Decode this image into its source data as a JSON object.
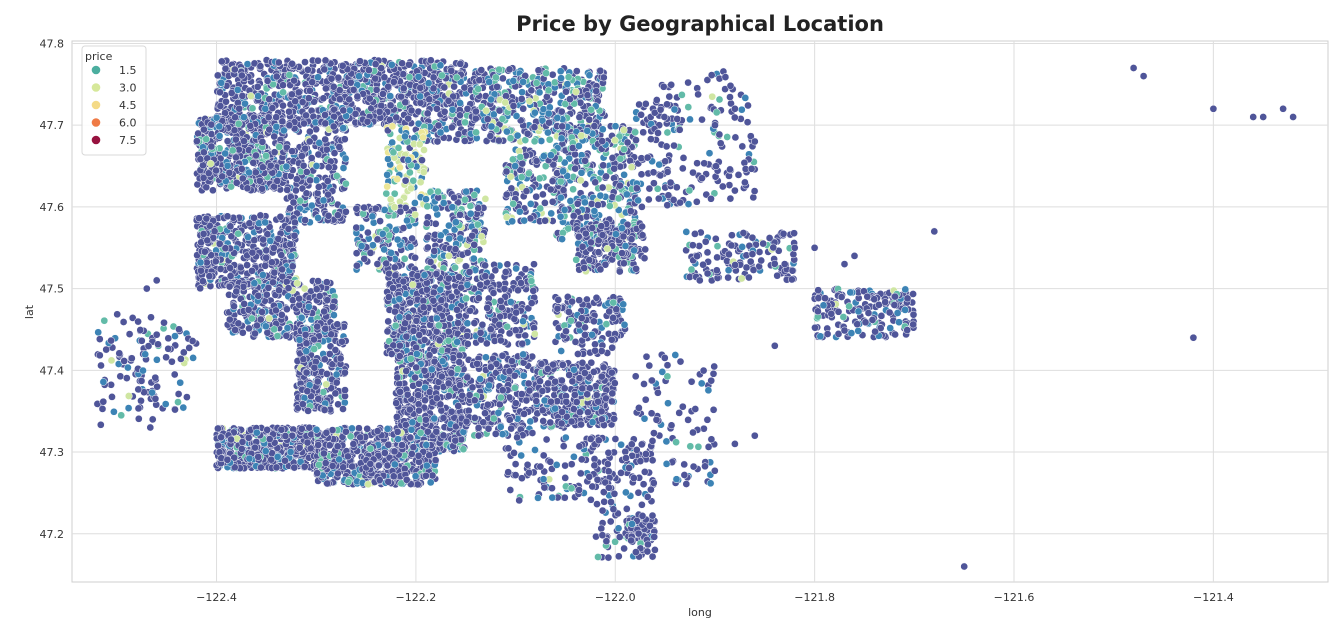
{
  "chart_data": {
    "type": "scatter",
    "title": "Price by Geographical Location",
    "xlabel": "long",
    "ylabel": "lat",
    "xlim": [
      -122.545,
      -121.285
    ],
    "ylim": [
      47.141,
      47.803
    ],
    "xticks": [
      -122.4,
      -122.2,
      -122.0,
      -121.8,
      -121.6,
      -121.4
    ],
    "xtick_labels": [
      "−122.4",
      "−122.2",
      "−122.0",
      "−121.8",
      "−121.6",
      "−121.4"
    ],
    "yticks": [
      47.2,
      47.3,
      47.4,
      47.5,
      47.6,
      47.7,
      47.8
    ],
    "ytick_labels": [
      "47.2",
      "47.3",
      "47.4",
      "47.5",
      "47.6",
      "47.7",
      "47.8"
    ],
    "grid": true,
    "hue": "price",
    "legend": {
      "title": "price",
      "placement": "top-left",
      "entries": [
        {
          "label": "1.5",
          "color": "#4bae9f"
        },
        {
          "label": "3.0",
          "color": "#d6e89a"
        },
        {
          "label": "4.5",
          "color": "#f4da86"
        },
        {
          "label": "6.0",
          "color": "#ef7a45"
        },
        {
          "label": "7.5",
          "color": "#97123f"
        }
      ]
    },
    "colors": {
      "base": "#4f5599",
      "mid": "#3c83b5",
      "teal": "#62bba8",
      "light": "#cfe6a2",
      "yellow": "#ece698",
      "edge": "#ffffff"
    },
    "clusters": [
      {
        "lon_range": [
          -122.4,
          -122.2
        ],
        "lat_range": [
          47.7,
          47.78
        ],
        "n": 700,
        "mix": "base"
      },
      {
        "lon_range": [
          -122.42,
          -122.33
        ],
        "lat_range": [
          47.62,
          47.71
        ],
        "n": 480,
        "mix": "base"
      },
      {
        "lon_range": [
          -122.33,
          -122.27
        ],
        "lat_range": [
          47.58,
          47.72
        ],
        "n": 260,
        "mix": "base"
      },
      {
        "lon_range": [
          -122.42,
          -122.32
        ],
        "lat_range": [
          47.5,
          47.59
        ],
        "n": 420,
        "mix": "base"
      },
      {
        "lon_range": [
          -122.39,
          -122.28
        ],
        "lat_range": [
          47.44,
          47.51
        ],
        "n": 320,
        "mix": "base"
      },
      {
        "lon_range": [
          -122.32,
          -122.27
        ],
        "lat_range": [
          47.35,
          47.46
        ],
        "n": 260,
        "mix": "base"
      },
      {
        "lon_range": [
          -122.4,
          -122.3
        ],
        "lat_range": [
          47.28,
          47.33
        ],
        "n": 420,
        "mix": "base"
      },
      {
        "lon_range": [
          -122.3,
          -122.22
        ],
        "lat_range": [
          47.26,
          47.33
        ],
        "n": 320,
        "mix": "base"
      },
      {
        "lon_range": [
          -122.2,
          -122.14
        ],
        "lat_range": [
          47.68,
          47.78
        ],
        "n": 260,
        "mix": "base"
      },
      {
        "lon_range": [
          -122.14,
          -122.07
        ],
        "lat_range": [
          47.68,
          47.77
        ],
        "n": 230,
        "mix": "mixed"
      },
      {
        "lon_range": [
          -122.07,
          -122.01
        ],
        "lat_range": [
          47.68,
          47.77
        ],
        "n": 170,
        "mix": "mixed"
      },
      {
        "lon_range": [
          -122.23,
          -122.19
        ],
        "lat_range": [
          47.6,
          47.7
        ],
        "n": 110,
        "mix": "light"
      },
      {
        "lon_range": [
          -122.26,
          -122.2
        ],
        "lat_range": [
          47.52,
          47.6
        ],
        "n": 150,
        "mix": "mixed"
      },
      {
        "lon_range": [
          -122.19,
          -122.13
        ],
        "lat_range": [
          47.52,
          47.62
        ],
        "n": 190,
        "mix": "mixed"
      },
      {
        "lon_range": [
          -122.06,
          -121.98
        ],
        "lat_range": [
          47.56,
          47.7
        ],
        "n": 360,
        "mix": "mixed"
      },
      {
        "lon_range": [
          -122.11,
          -122.05
        ],
        "lat_range": [
          47.58,
          47.67
        ],
        "n": 150,
        "mix": "mixed"
      },
      {
        "lon_range": [
          -122.04,
          -121.97
        ],
        "lat_range": [
          47.52,
          47.58
        ],
        "n": 180,
        "mix": "base"
      },
      {
        "lon_range": [
          -122.23,
          -122.15
        ],
        "lat_range": [
          47.42,
          47.52
        ],
        "n": 470,
        "mix": "base"
      },
      {
        "lon_range": [
          -122.22,
          -122.15
        ],
        "lat_range": [
          47.3,
          47.42
        ],
        "n": 480,
        "mix": "base"
      },
      {
        "lon_range": [
          -122.25,
          -122.18
        ],
        "lat_range": [
          47.26,
          47.31
        ],
        "n": 200,
        "mix": "base"
      },
      {
        "lon_range": [
          -122.15,
          -122.08
        ],
        "lat_range": [
          47.43,
          47.53
        ],
        "n": 200,
        "mix": "base"
      },
      {
        "lon_range": [
          -122.15,
          -122.08
        ],
        "lat_range": [
          47.32,
          47.42
        ],
        "n": 230,
        "mix": "base"
      },
      {
        "lon_range": [
          -122.08,
          -122.0
        ],
        "lat_range": [
          47.33,
          47.41
        ],
        "n": 310,
        "mix": "base"
      },
      {
        "lon_range": [
          -122.06,
          -121.99
        ],
        "lat_range": [
          47.42,
          47.49
        ],
        "n": 130,
        "mix": "base"
      },
      {
        "lon_range": [
          -122.03,
          -121.96
        ],
        "lat_range": [
          47.26,
          47.32
        ],
        "n": 70,
        "mix": "base"
      },
      {
        "lon_range": [
          -121.99,
          -121.96
        ],
        "lat_range": [
          47.19,
          47.22
        ],
        "n": 70,
        "mix": "base"
      },
      {
        "lon_range": [
          -122.11,
          -122.0
        ],
        "lat_range": [
          47.24,
          47.32
        ],
        "n": 90,
        "mix": "base"
      },
      {
        "lon_range": [
          -122.02,
          -121.96
        ],
        "lat_range": [
          47.17,
          47.26
        ],
        "n": 60,
        "mix": "base"
      },
      {
        "lon_range": [
          -121.98,
          -121.93
        ],
        "lat_range": [
          47.6,
          47.75
        ],
        "n": 110,
        "mix": "base"
      },
      {
        "lon_range": [
          -121.93,
          -121.86
        ],
        "lat_range": [
          47.6,
          47.77
        ],
        "n": 90,
        "mix": "base"
      },
      {
        "lon_range": [
          -121.93,
          -121.82
        ],
        "lat_range": [
          47.51,
          47.57
        ],
        "n": 130,
        "mix": "base"
      },
      {
        "lon_range": [
          -121.98,
          -121.9
        ],
        "lat_range": [
          47.3,
          47.42
        ],
        "n": 60,
        "mix": "base"
      },
      {
        "lon_range": [
          -121.95,
          -121.9
        ],
        "lat_range": [
          47.26,
          47.29
        ],
        "n": 20,
        "mix": "base"
      },
      {
        "lon_range": [
          -121.8,
          -121.7
        ],
        "lat_range": [
          47.44,
          47.5
        ],
        "n": 170,
        "mix": "base"
      },
      {
        "lon_range": [
          -122.52,
          -122.46
        ],
        "lat_range": [
          47.33,
          47.47
        ],
        "n": 65,
        "mix": "base"
      },
      {
        "lon_range": [
          -122.48,
          -122.42
        ],
        "lat_range": [
          47.35,
          47.46
        ],
        "n": 60,
        "mix": "base"
      }
    ],
    "outliers": [
      [
        -121.68,
        47.57
      ],
      [
        -121.65,
        47.16
      ],
      [
        -121.42,
        47.44
      ],
      [
        -121.48,
        47.77
      ],
      [
        -121.47,
        47.76
      ],
      [
        -121.4,
        47.72
      ],
      [
        -121.36,
        47.71
      ],
      [
        -121.35,
        47.71
      ],
      [
        -121.32,
        47.71
      ],
      [
        -121.33,
        47.72
      ],
      [
        -121.84,
        47.43
      ],
      [
        -121.82,
        47.55
      ],
      [
        -121.8,
        47.55
      ],
      [
        -121.83,
        47.53
      ],
      [
        -122.46,
        47.51
      ],
      [
        -122.47,
        47.5
      ],
      [
        -121.9,
        47.7
      ],
      [
        -121.88,
        47.72
      ],
      [
        -121.86,
        47.68
      ],
      [
        -121.88,
        47.62
      ],
      [
        -121.87,
        47.63
      ],
      [
        -121.86,
        47.32
      ],
      [
        -121.88,
        47.31
      ],
      [
        -121.77,
        47.53
      ],
      [
        -121.76,
        47.54
      ],
      [
        -121.72,
        47.48
      ]
    ]
  }
}
